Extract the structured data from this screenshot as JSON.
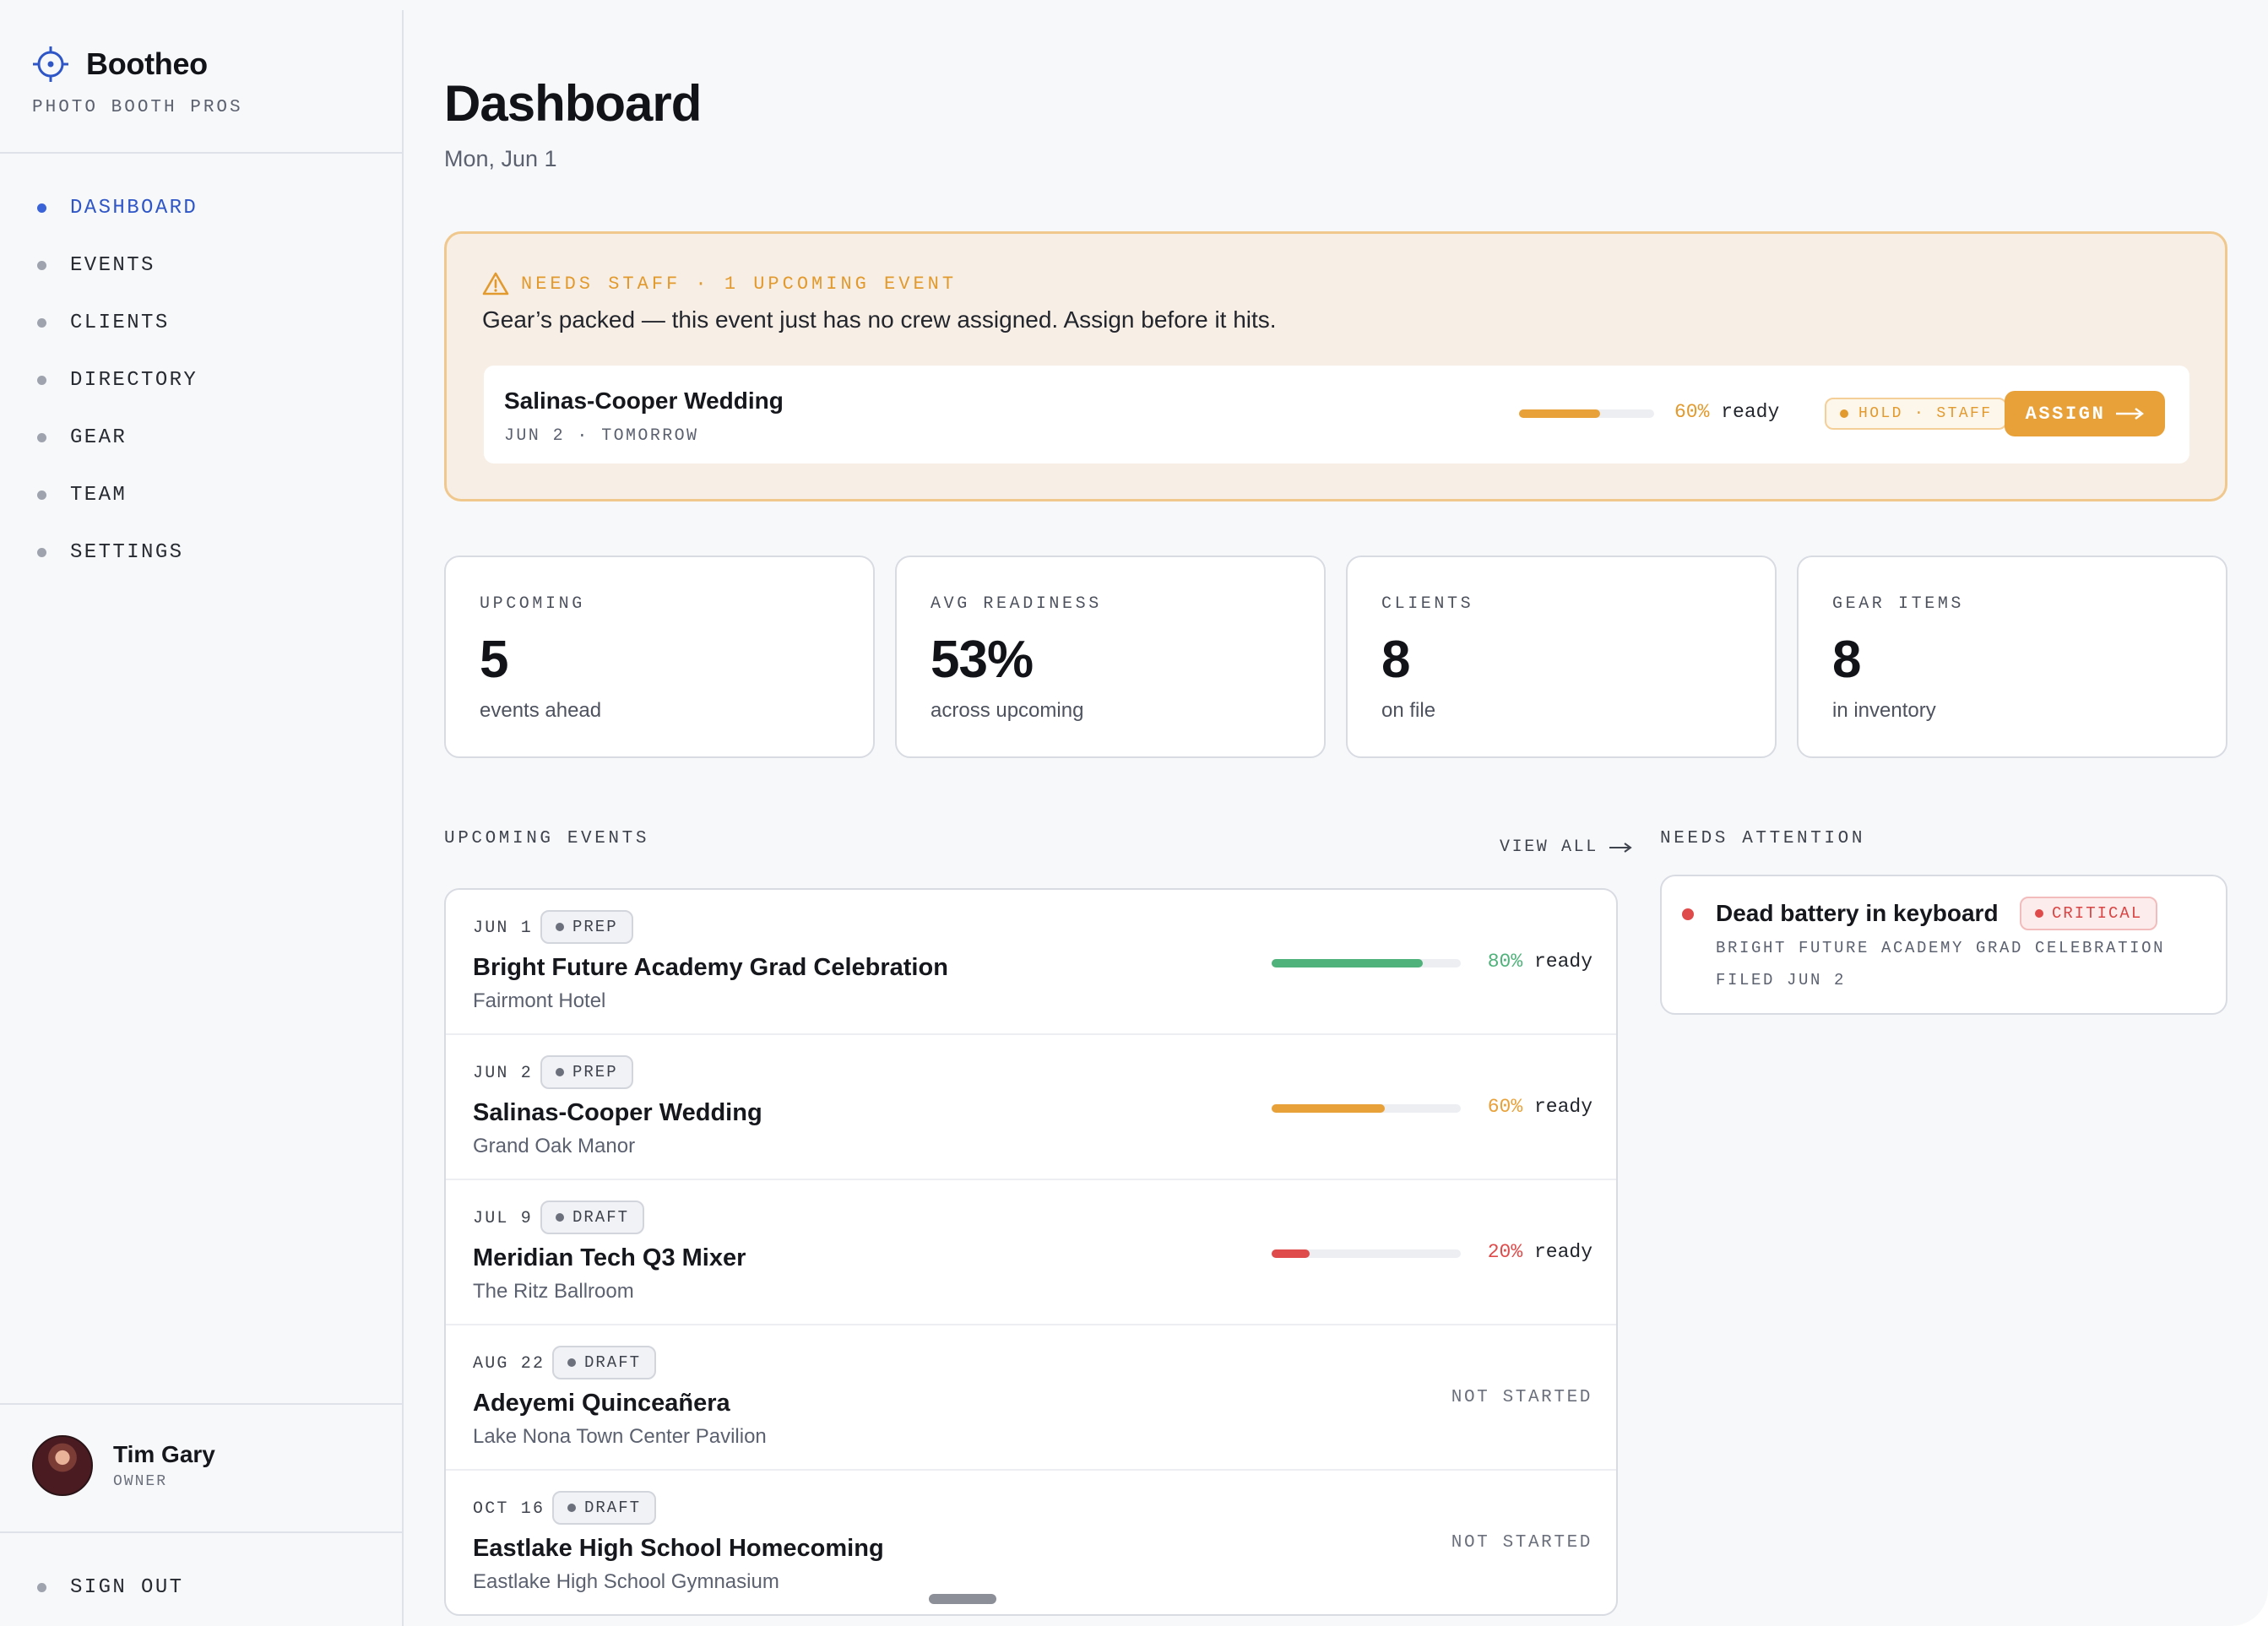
{
  "brand": {
    "name": "Bootheo",
    "tagline": "PHOTO BOOTH PROS",
    "icon": "crosshair-icon",
    "accent": "#2f56c7"
  },
  "nav": {
    "items": [
      {
        "label": "DASHBOARD",
        "active": true
      },
      {
        "label": "EVENTS"
      },
      {
        "label": "CLIENTS"
      },
      {
        "label": "DIRECTORY"
      },
      {
        "label": "GEAR"
      },
      {
        "label": "TEAM"
      },
      {
        "label": "SETTINGS"
      }
    ],
    "signout": "SIGN OUT"
  },
  "user": {
    "name": "Tim Gary",
    "role": "OWNER"
  },
  "page": {
    "title": "Dashboard",
    "date": "Mon, Jun 1"
  },
  "alert": {
    "icon": "warning-triangle-icon",
    "title": "NEEDS STAFF · 1 UPCOMING EVENT",
    "message": "Gear’s packed — this event just has no crew assigned. Assign before it hits.",
    "card": {
      "name": "Salinas-Cooper Wedding",
      "date": "JUN 2 · TOMORROW",
      "readiness": 60,
      "readiness_pct": "60%",
      "readiness_label": "ready",
      "pill": "HOLD · STAFF",
      "button": "ASSIGN",
      "color": "#e8a138"
    }
  },
  "stats": [
    {
      "label": "UPCOMING",
      "value": "5",
      "sub": "events ahead"
    },
    {
      "label": "AVG READINESS",
      "value": "53%",
      "sub": "across upcoming"
    },
    {
      "label": "CLIENTS",
      "value": "8",
      "sub": "on file"
    },
    {
      "label": "GEAR ITEMS",
      "value": "8",
      "sub": "in inventory"
    }
  ],
  "upcoming": {
    "title": "UPCOMING EVENTS",
    "view_all": "VIEW ALL",
    "events": [
      {
        "date": "JUN 1",
        "status": "PREP",
        "name": "Bright Future Academy Grad Celebration",
        "venue": "Fairmont Hotel",
        "readiness": 80,
        "readiness_pct": "80%",
        "readiness_label": "ready",
        "color": "#4fb27a"
      },
      {
        "date": "JUN 2",
        "status": "PREP",
        "name": "Salinas-Cooper Wedding",
        "venue": "Grand Oak Manor",
        "readiness": 60,
        "readiness_pct": "60%",
        "readiness_label": "ready",
        "color": "#e8a138"
      },
      {
        "date": "JUL 9",
        "status": "DRAFT",
        "name": "Meridian Tech Q3 Mixer",
        "venue": "The Ritz Ballroom",
        "readiness": 20,
        "readiness_pct": "20%",
        "readiness_label": "ready",
        "color": "#df4a4a"
      },
      {
        "date": "AUG 22",
        "status": "DRAFT",
        "name": "Adeyemi Quinceañera",
        "venue": "Lake Nona Town Center Pavilion",
        "not_started": "NOT STARTED"
      },
      {
        "date": "OCT 16",
        "status": "DRAFT",
        "name": "Eastlake High School Homecoming",
        "venue": "Eastlake High School Gymnasium",
        "not_started": "NOT STARTED"
      }
    ]
  },
  "attention": {
    "title": "NEEDS ATTENTION",
    "items": [
      {
        "title": "Dead battery in keyboard",
        "severity": "CRITICAL",
        "event": "BRIGHT FUTURE ACADEMY GRAD CELEBRATION",
        "filed": "FILED JUN 2",
        "color": "#df4a4a"
      }
    ]
  }
}
